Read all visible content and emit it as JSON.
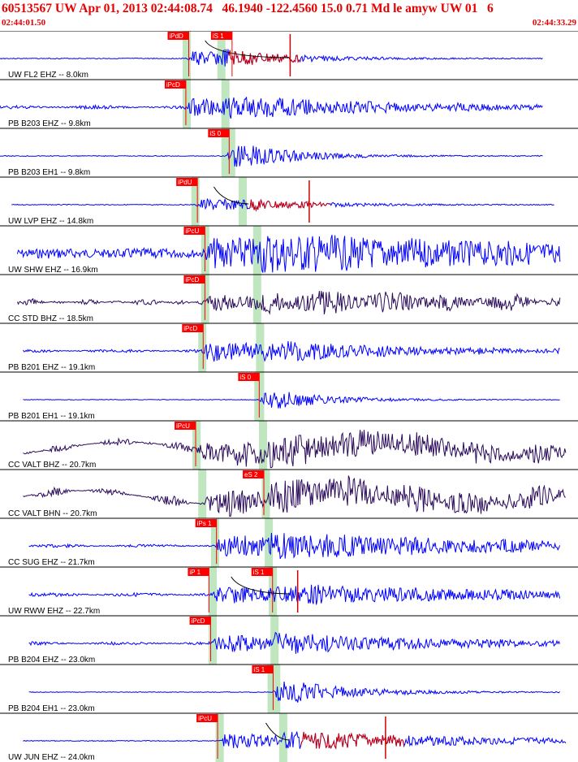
{
  "header": {
    "title": "60513567 UW Apr 01, 2013 02:44:08.74   46.1940 -122.4560 15.0 0.71 Md le amyw UW 01   6",
    "time_start": "02:44:01.50",
    "time_end": "02:44:33.29"
  },
  "colors": {
    "header_text": "#e60000",
    "trace_blue": "#0000ff",
    "trace_dark": "#2a0a5a",
    "pick_box": "#ff0000",
    "pick_text": "#ffffff",
    "picks_band": "#bfe6bf",
    "separator": "#000000",
    "label_text": "#000000"
  },
  "chart_data": {
    "type": "seismogram",
    "title": "60513567 UW Apr 01, 2013 02:44:08.74   46.1940 -122.4560 15.0 0.71 Md le amyw UW 01   6",
    "time_range": [
      "02:44:01.50",
      "02:44:33.29"
    ],
    "traces": [
      {
        "label": "UW FL2 EHZ -- 8.0km",
        "color": "blue",
        "start": 0.0,
        "end": 0.94,
        "noise": 0.05,
        "p": 0.323,
        "s": 0.383,
        "amp": 0.55,
        "dur": 0.12,
        "flat": true,
        "sh": 0,
        "picks": [
          {
            "text": "iPdD",
            "pos": 0.29
          },
          {
            "text": "iS 1",
            "pos": 0.365
          }
        ],
        "coda": {
          "from": 0.355,
          "to": 0.5
        },
        "red_tick": 0.502,
        "red_wave": [
          0.395,
          0.52
        ]
      },
      {
        "label": "PB B203 EHZ -- 9.8km",
        "color": "blue",
        "start": 0.0,
        "end": 0.94,
        "noise": 0.06,
        "p": 0.323,
        "s": 0.39,
        "amp": 0.6,
        "dur": 0.26,
        "flat": false,
        "sh": 1,
        "picks": [
          {
            "text": "iPcD",
            "pos": 0.285
          }
        ],
        "coda": null,
        "red_tick": null,
        "red_wave": null
      },
      {
        "label": "PB B203 EH1 -- 9.8km",
        "color": "blue",
        "start": 0.0,
        "end": 0.94,
        "noise": 0.05,
        "p": 0.39,
        "s": 0.4,
        "amp": 0.5,
        "dur": 0.1,
        "flat": true,
        "sh": 2,
        "picks": [
          {
            "text": "iS 0",
            "pos": 0.36
          }
        ],
        "coda": null,
        "red_tick": null,
        "red_wave": null
      },
      {
        "label": "UW LVP EHZ -- 14.8km",
        "color": "blue",
        "start": 0.02,
        "end": 0.96,
        "noise": 0.05,
        "p": 0.338,
        "s": 0.42,
        "amp": 0.45,
        "dur": 0.12,
        "flat": true,
        "sh": 3,
        "picks": [
          {
            "text": "iPdU",
            "pos": 0.305
          }
        ],
        "coda": {
          "from": 0.37,
          "to": 0.43
        },
        "red_tick": 0.535,
        "red_wave": [
          0.43,
          0.57
        ]
      },
      {
        "label": "UW SHW EHZ -- 16.9km",
        "color": "blue",
        "start": 0.03,
        "end": 0.97,
        "noise": 0.22,
        "p": 0.355,
        "s": 0.445,
        "amp": 0.9,
        "dur": 0.5,
        "flat": false,
        "sh": 4,
        "picks": [
          {
            "text": "iPcU",
            "pos": 0.318
          }
        ],
        "coda": null,
        "red_tick": null,
        "red_wave": null
      },
      {
        "label": "CC STD BHZ -- 18.5km",
        "color": "dark",
        "start": 0.03,
        "end": 0.97,
        "noise": 0.04,
        "p": 0.355,
        "s": 0.445,
        "amp": 0.55,
        "dur": 0.6,
        "flat": false,
        "sh": 5,
        "picks": [
          {
            "text": "iPcD",
            "pos": 0.318
          }
        ],
        "coda": null,
        "red_tick": null,
        "red_wave": null
      },
      {
        "label": "PB B201 EHZ -- 19.1km",
        "color": "blue",
        "start": 0.04,
        "end": 0.97,
        "noise": 0.05,
        "p": 0.35,
        "s": 0.45,
        "amp": 0.7,
        "dur": 0.22,
        "flat": false,
        "sh": 6,
        "picks": [
          {
            "text": "iPcD",
            "pos": 0.315
          }
        ],
        "coda": null,
        "red_tick": null,
        "red_wave": null
      },
      {
        "label": "PB B201 EH1 -- 19.1km",
        "color": "blue",
        "start": 0.04,
        "end": 0.97,
        "noise": 0.04,
        "p": 0.447,
        "s": 0.45,
        "amp": 0.4,
        "dur": 0.1,
        "flat": true,
        "sh": 7,
        "picks": [
          {
            "text": "iS 0",
            "pos": 0.412
          }
        ],
        "coda": null,
        "red_tick": null,
        "red_wave": null
      },
      {
        "label": "CC VALT BHZ -- 20.7km",
        "color": "dark",
        "start": 0.04,
        "end": 0.98,
        "noise": 0.08,
        "p": 0.34,
        "s": 0.455,
        "amp": 0.75,
        "dur": 0.6,
        "flat": false,
        "sh": 8,
        "picks": [
          {
            "text": "iPcU",
            "pos": 0.302
          }
        ],
        "coda": null,
        "red_tick": null,
        "red_wave": null
      },
      {
        "label": "CC VALT BHN -- 20.7km",
        "color": "dark",
        "start": 0.04,
        "end": 0.98,
        "noise": 0.1,
        "p": 0.35,
        "s": 0.46,
        "amp": 0.75,
        "dur": 0.6,
        "flat": false,
        "sh": 9,
        "picks": [
          {
            "text": "eS 2",
            "pos": 0.42
          }
        ],
        "coda": null,
        "red_tick": null,
        "red_wave": null
      },
      {
        "label": "CC SUG EHZ -- 21.7km",
        "color": "blue",
        "start": 0.05,
        "end": 0.97,
        "noise": 0.05,
        "p": 0.372,
        "s": 0.465,
        "amp": 0.7,
        "dur": 0.45,
        "flat": false,
        "sh": 10,
        "picks": [
          {
            "text": "iPs 1",
            "pos": 0.338
          }
        ],
        "coda": null,
        "red_tick": null,
        "red_wave": null
      },
      {
        "label": "UW RWW EHZ -- 22.7km",
        "color": "blue",
        "start": 0.05,
        "end": 0.97,
        "noise": 0.06,
        "p": 0.368,
        "s": 0.472,
        "amp": 0.55,
        "dur": 0.4,
        "flat": false,
        "sh": 11,
        "picks": [
          {
            "text": "iP 1",
            "pos": 0.325
          },
          {
            "text": "iS 1",
            "pos": 0.435
          }
        ],
        "coda": {
          "from": 0.4,
          "to": 0.5
        },
        "red_tick": 0.515,
        "red_wave": null
      },
      {
        "label": "PB B204 EHZ -- 23.0km",
        "color": "blue",
        "start": 0.05,
        "end": 0.97,
        "noise": 0.05,
        "p": 0.368,
        "s": 0.475,
        "amp": 0.6,
        "dur": 0.3,
        "flat": false,
        "sh": 12,
        "picks": [
          {
            "text": "iPcD",
            "pos": 0.328
          }
        ],
        "coda": null,
        "red_tick": null,
        "red_wave": null
      },
      {
        "label": "PB B204 EH1 -- 23.0km",
        "color": "blue",
        "start": 0.05,
        "end": 0.97,
        "noise": 0.04,
        "p": 0.47,
        "s": 0.478,
        "amp": 0.5,
        "dur": 0.12,
        "flat": true,
        "sh": 13,
        "picks": [
          {
            "text": "iS 1",
            "pos": 0.436
          }
        ],
        "coda": null,
        "red_tick": null,
        "red_wave": null
      },
      {
        "label": "UW JUN EHZ -- 24.0km",
        "color": "blue",
        "start": 0.04,
        "end": 0.98,
        "noise": 0.05,
        "p": 0.38,
        "s": 0.49,
        "amp": 0.55,
        "dur": 0.35,
        "flat": true,
        "sh": 14,
        "picks": [
          {
            "text": "iPcU",
            "pos": 0.34
          }
        ],
        "coda": {
          "from": 0.46,
          "to": 0.5
        },
        "red_tick": 0.667,
        "red_wave": [
          0.52,
          0.7
        ]
      }
    ]
  }
}
